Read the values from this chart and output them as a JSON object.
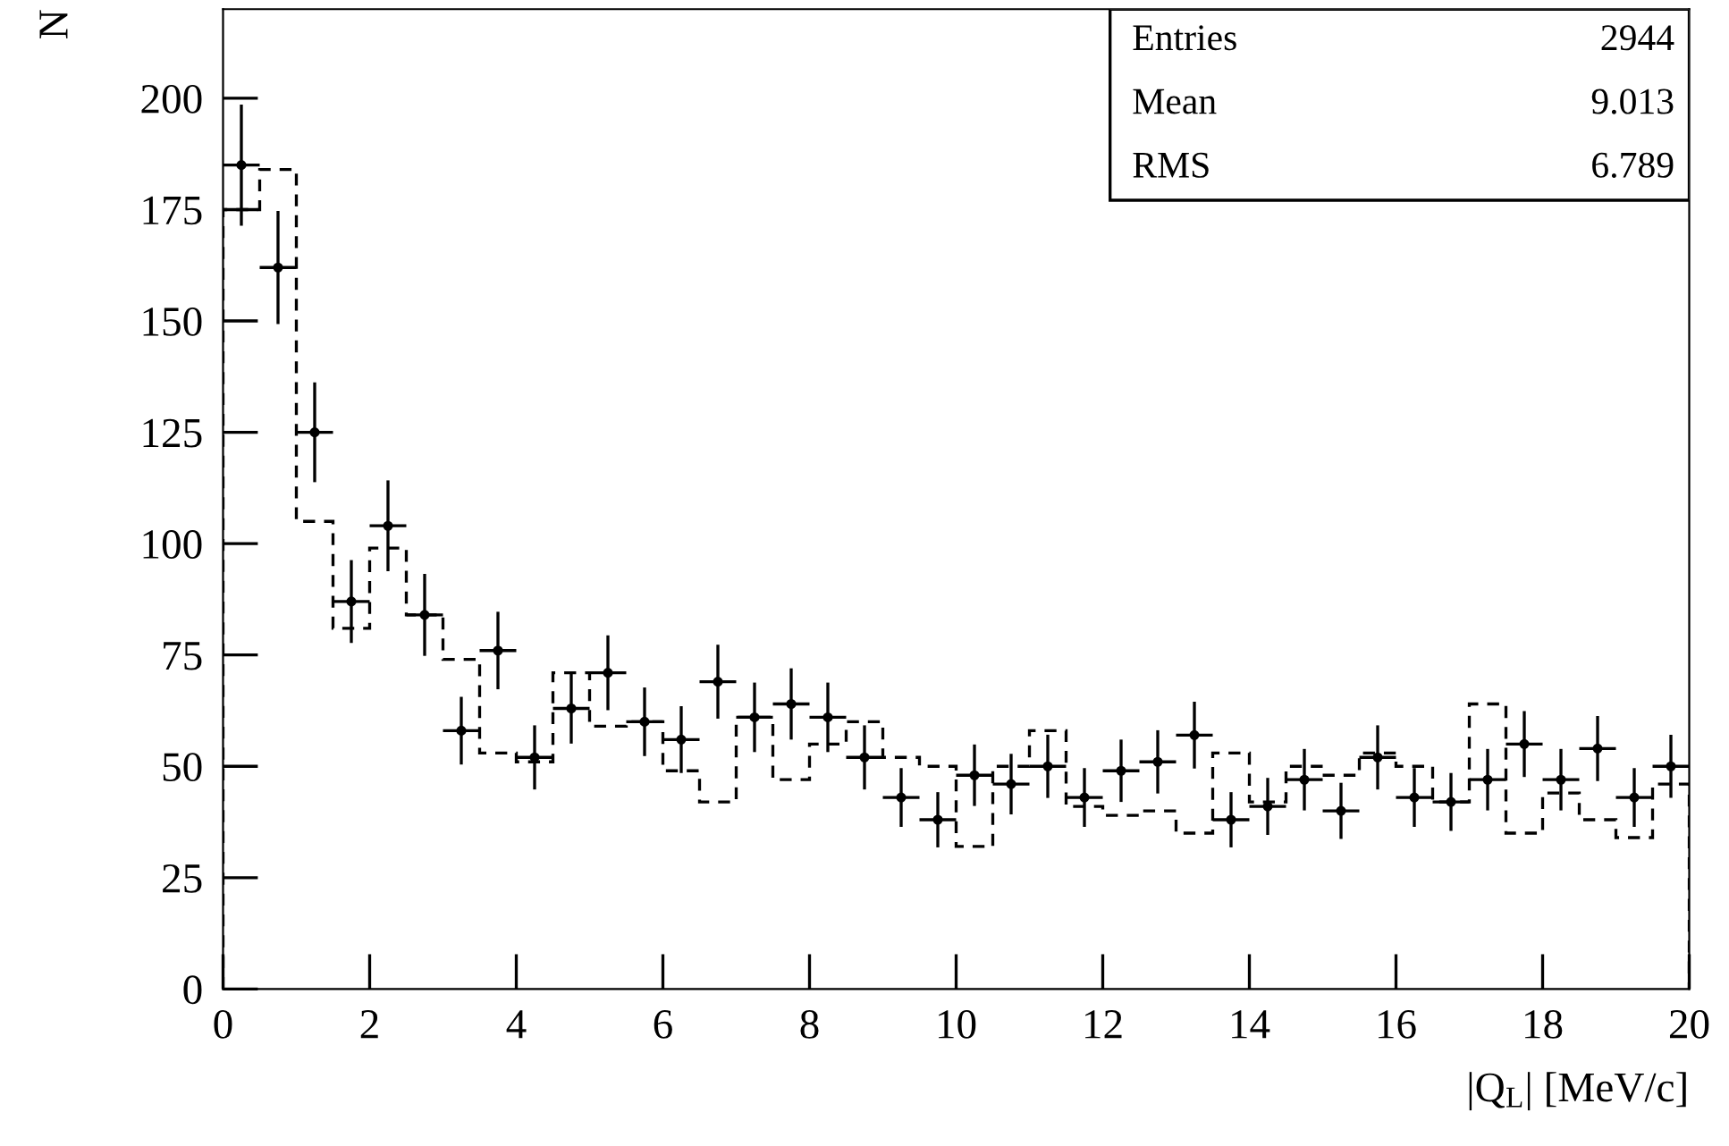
{
  "chart_data": {
    "type": "scatter",
    "xlabel": "|Q$_{L}$| [MeV/c]",
    "ylabel": "N",
    "annotations": [
      "Entries",
      "2944",
      "Mean",
      "9.013",
      "RMS",
      "6.789"
    ],
    "xlim": [
      0,
      20
    ],
    "xticks": [
      0,
      2,
      4,
      6,
      8,
      10,
      12,
      14,
      16,
      18,
      20
    ],
    "ylim": [
      0,
      220
    ],
    "yticks": [
      0,
      25,
      50,
      75,
      100,
      125,
      150,
      175,
      200
    ],
    "grid": false,
    "legend": false,
    "series": [
      {
        "type": "histogram",
        "color": "#000000",
        "line_style": "dashed",
        "bins": [
          0,
          0.5,
          1,
          1.5,
          2,
          2.5,
          3,
          3.5,
          4,
          4.5,
          5,
          5.5,
          6,
          6.5,
          7,
          7.5,
          8,
          8.5,
          9,
          9.5,
          10,
          10.5,
          11,
          11.5,
          12,
          12.5,
          13,
          13.5,
          14,
          14.5,
          15,
          15.5,
          16,
          16.5,
          17,
          17.5,
          18,
          18.5,
          19,
          19.5,
          20
        ],
        "values": [
          175,
          184,
          105,
          81,
          99,
          84,
          74,
          53,
          51,
          71,
          59,
          60,
          49,
          42,
          61,
          47,
          55,
          60,
          52,
          50,
          32,
          50,
          58,
          41,
          39,
          40,
          35,
          53,
          42,
          50,
          48,
          53,
          50,
          42,
          64,
          35,
          44,
          38,
          34,
          46
        ]
      },
      {
        "color": "#000000",
        "marker": "circle",
        "x": [
          0.25,
          0.75,
          1.25,
          1.75,
          2.25,
          2.75,
          3.25,
          3.75,
          4.25,
          4.75,
          5.25,
          5.75,
          6.25,
          6.75,
          7.25,
          7.75,
          8.25,
          8.75,
          9.25,
          9.75,
          10.25,
          10.75,
          11.25,
          11.75,
          12.25,
          12.75,
          13.25,
          13.75,
          14.25,
          14.75,
          15.25,
          15.75,
          16.25,
          16.75,
          17.25,
          17.75,
          18.25,
          18.75,
          19.25,
          19.75
        ],
        "values": [
          185,
          162,
          125,
          87,
          104,
          84,
          58,
          76,
          52,
          63,
          71,
          60,
          56,
          69,
          61,
          64,
          61,
          52,
          43,
          38,
          48,
          46,
          50,
          43,
          49,
          51,
          57,
          38,
          41,
          47,
          40,
          52,
          43,
          42,
          47,
          55,
          47,
          54,
          43,
          50
        ],
        "errors": [
          13.6,
          12.7,
          11.2,
          9.3,
          10.2,
          9.2,
          7.6,
          8.7,
          7.2,
          7.9,
          8.4,
          7.7,
          7.5,
          8.3,
          7.8,
          8,
          7.8,
          7.2,
          6.6,
          6.2,
          6.9,
          6.8,
          7.1,
          6.6,
          7,
          7.1,
          7.5,
          6.2,
          6.4,
          6.9,
          6.3,
          7.2,
          6.6,
          6.5,
          6.9,
          7.4,
          6.9,
          7.3,
          6.6,
          7.1
        ],
        "xerrors": [
          0.25,
          0.25,
          0.25,
          0.25,
          0.25,
          0.25,
          0.25,
          0.25,
          0.25,
          0.25,
          0.25,
          0.25,
          0.25,
          0.25,
          0.25,
          0.25,
          0.25,
          0.25,
          0.25,
          0.25,
          0.25,
          0.25,
          0.25,
          0.25,
          0.25,
          0.25,
          0.25,
          0.25,
          0.25,
          0.25,
          0.25,
          0.25,
          0.25,
          0.25,
          0.25,
          0.25,
          0.25,
          0.25,
          0.25,
          0.25
        ]
      }
    ]
  }
}
